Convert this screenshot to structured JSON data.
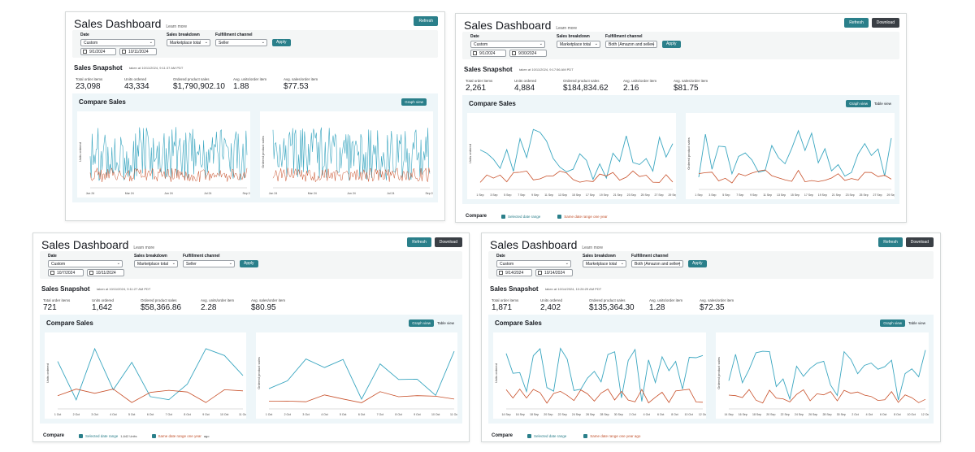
{
  "colors": {
    "accent": "#2a7f8a",
    "dark_button": "#3a3f45",
    "series_selected": "#3aa6c0",
    "series_last_year": "#c8502a"
  },
  "panels": [
    {
      "title": "Sales Dashboard",
      "learn": "Learn more",
      "refresh": "Refresh",
      "download": "",
      "filters": {
        "date_label": "Date",
        "date_value": "Custom",
        "start": "9/1/2024",
        "end": "10/11/2024",
        "breakdown_label": "Sales breakdown",
        "breakdown_value": "Marketplace total",
        "channel_label": "Fulfillment channel",
        "channel_value": "Seller",
        "apply": "Apply"
      },
      "snapshot": {
        "title": "Sales Snapshot",
        "taken": "taken at 10/11/2024, 9:11:37 AM PDT",
        "metrics": [
          {
            "label": "Total order items",
            "value": "23,098"
          },
          {
            "label": "Units ordered",
            "value": "43,334"
          },
          {
            "label": "Ordered product sales",
            "value": "$1,790,902.10"
          },
          {
            "label": "Avg. units/order item",
            "value": "1.88"
          },
          {
            "label": "Avg. sales/order item",
            "value": "$77.53"
          }
        ]
      },
      "compare": {
        "title": "Compare Sales",
        "graph_view": "Graph view",
        "table_view": ""
      },
      "charts": [
        {
          "ylabel": "Units ordered",
          "xticks": [
            "Jun 24",
            "Mar 24",
            "Jun 24",
            "Jul 24",
            "Sep 24"
          ]
        },
        {
          "ylabel": "Ordered product sales",
          "xticks": [
            "Jun 24",
            "Mar 24",
            "Jun 24",
            "Jul 24",
            "Sep 24"
          ]
        }
      ],
      "legend": null
    },
    {
      "title": "Sales Dashboard",
      "learn": "Learn more",
      "refresh": "Refresh",
      "download": "Download",
      "filters": {
        "date_label": "Date",
        "date_value": "Custom",
        "start": "9/1/2024",
        "end": "9/30/2024",
        "breakdown_label": "Sales breakdown",
        "breakdown_value": "Marketplace total",
        "channel_label": "Fulfillment channel",
        "channel_value": "Both (Amazon and seller)",
        "apply": "Apply"
      },
      "snapshot": {
        "title": "Sales Snapshot",
        "taken": "taken at 10/11/2024, 9:17:56 AM PDT",
        "metrics": [
          {
            "label": "Total order items",
            "value": "2,261"
          },
          {
            "label": "Units ordered",
            "value": "4,884"
          },
          {
            "label": "Ordered product sales",
            "value": "$184,834.62"
          },
          {
            "label": "Avg. units/order item",
            "value": "2.16"
          },
          {
            "label": "Avg. sales/order item",
            "value": "$81.75"
          }
        ]
      },
      "compare": {
        "title": "Compare Sales",
        "graph_view": "Graph view",
        "table_view": "Table view"
      },
      "charts": [
        {
          "ylabel": "Units ordered",
          "xticks": [
            "1 Sep",
            "3 Sep",
            "5 Sep",
            "7 Sep",
            "9 Sep",
            "11 Sep",
            "13 Sep",
            "15 Sep",
            "17 Sep",
            "19 Sep",
            "21 Sep",
            "23 Sep",
            "25 Sep",
            "27 Sep",
            "29 Sep"
          ]
        },
        {
          "ylabel": "Ordered product sales",
          "xticks": [
            "1 Sep",
            "3 Sep",
            "5 Sep",
            "7 Sep",
            "9 Sep",
            "11 Sep",
            "13 Sep",
            "15 Sep",
            "17 Sep",
            "19 Sep",
            "21 Sep",
            "23 Sep",
            "25 Sep",
            "27 Sep",
            "29 Sep"
          ]
        }
      ],
      "legend": {
        "head": "Compare",
        "selected": "Selected date range",
        "same": "Same date range one year",
        "sub_selected": "",
        "sub_same": ""
      }
    },
    {
      "title": "Sales Dashboard",
      "learn": "Learn more",
      "refresh": "Refresh",
      "download": "Download",
      "filters": {
        "date_label": "Date",
        "date_value": "Custom",
        "start": "10/7/2024",
        "end": "10/11/2024",
        "breakdown_label": "Sales breakdown",
        "breakdown_value": "Marketplace total",
        "channel_label": "Fulfillment channel",
        "channel_value": "Seller",
        "apply": "Apply"
      },
      "snapshot": {
        "title": "Sales Snapshot",
        "taken": "taken at 10/11/2024, 9:11:27 AM PDT",
        "metrics": [
          {
            "label": "Total order items",
            "value": "721"
          },
          {
            "label": "Units ordered",
            "value": "1,642"
          },
          {
            "label": "Ordered product sales",
            "value": "$58,366.86"
          },
          {
            "label": "Avg. units/order item",
            "value": "2.28"
          },
          {
            "label": "Avg. sales/order item",
            "value": "$80.95"
          }
        ]
      },
      "compare": {
        "title": "Compare Sales",
        "graph_view": "Graph view",
        "table_view": "Table view"
      },
      "charts": [
        {
          "ylabel": "Units ordered",
          "xticks": [
            "1 Oct",
            "2 Oct",
            "3 Oct",
            "4 Oct",
            "5 Oct",
            "6 Oct",
            "7 Oct",
            "8 Oct",
            "9 Oct",
            "10 Oct",
            "11 Oct"
          ]
        },
        {
          "ylabel": "Ordered product sales",
          "xticks": [
            "1 Oct",
            "2 Oct",
            "3 Oct",
            "4 Oct",
            "5 Oct",
            "6 Oct",
            "7 Oct",
            "8 Oct",
            "9 Oct",
            "10 Oct",
            "11 Oct"
          ]
        }
      ],
      "legend": {
        "head": "Compare",
        "selected": "Selected date range",
        "same": "Same date range one year",
        "sub_selected": "1,642 Units",
        "sub_same": "ago"
      }
    },
    {
      "title": "Sales Dashboard",
      "learn": "Learn more",
      "refresh": "Refresh",
      "download": "Download",
      "filters": {
        "date_label": "Date",
        "date_value": "Custom",
        "start": "9/14/2024",
        "end": "10/14/2024",
        "breakdown_label": "Sales breakdown",
        "breakdown_value": "Marketplace total",
        "channel_label": "Fulfillment channel",
        "channel_value": "Both (Amazon and seller)",
        "apply": "Apply"
      },
      "snapshot": {
        "title": "Sales Snapshot",
        "taken": "taken at 10/14/2024, 10:26:29 AM PDT",
        "metrics": [
          {
            "label": "Total order items",
            "value": "1,871"
          },
          {
            "label": "Units ordered",
            "value": "2,402"
          },
          {
            "label": "Ordered product sales",
            "value": "$135,364.30"
          },
          {
            "label": "Avg. units/order item",
            "value": "1.28"
          },
          {
            "label": "Avg. sales/order item",
            "value": "$72.35"
          }
        ]
      },
      "compare": {
        "title": "Compare Sales",
        "graph_view": "Graph view",
        "table_view": "Table view"
      },
      "charts": [
        {
          "ylabel": "Units ordered",
          "xticks": [
            "14 Sep",
            "16 Sep",
            "18 Sep",
            "20 Sep",
            "22 Sep",
            "24 Sep",
            "26 Sep",
            "28 Sep",
            "30 Sep",
            "2 Oct",
            "4 Oct",
            "6 Oct",
            "8 Oct",
            "10 Oct",
            "12 Oct"
          ]
        },
        {
          "ylabel": "Ordered product sales",
          "xticks": [
            "14 Sep",
            "16 Sep",
            "18 Sep",
            "20 Sep",
            "22 Sep",
            "24 Sep",
            "26 Sep",
            "28 Sep",
            "30 Sep",
            "2 Oct",
            "4 Oct",
            "6 Oct",
            "8 Oct",
            "10 Oct",
            "12 Oct"
          ]
        }
      ],
      "legend": {
        "head": "Compare",
        "selected": "Selected date range",
        "same": "Same date range one year ago",
        "sub_selected": "",
        "sub_same": ""
      }
    }
  ]
}
